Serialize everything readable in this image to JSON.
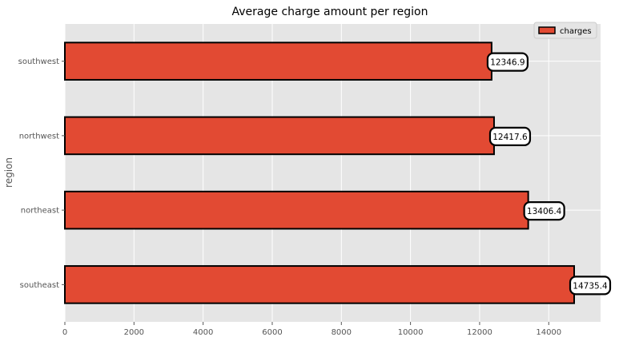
{
  "chart_data": {
    "type": "bar",
    "orientation": "horizontal",
    "title": "Average charge amount per region",
    "xlabel": "",
    "ylabel": "region",
    "categories": [
      "southwest",
      "northwest",
      "northeast",
      "southeast"
    ],
    "series": [
      {
        "name": "charges",
        "values": [
          12346.9,
          12417.6,
          13406.4,
          14735.4
        ],
        "color": "#e24a33"
      }
    ],
    "data_labels": [
      "12346.9",
      "12417.6",
      "13406.4",
      "14735.4"
    ],
    "xlim": [
      0,
      15500
    ],
    "xticks": [
      0,
      2000,
      4000,
      6000,
      8000,
      10000,
      12000,
      14000
    ],
    "xtick_labels": [
      "0",
      "2000",
      "4000",
      "6000",
      "8000",
      "10000",
      "12000",
      "14000"
    ],
    "grid": true,
    "legend": "top-right",
    "style": {
      "plot_background": "#e5e5e5",
      "grid_color": "#ffffff",
      "bar_edge": "#000000",
      "label_box_fill": "#ffffff",
      "tick_text": "#555555"
    }
  }
}
